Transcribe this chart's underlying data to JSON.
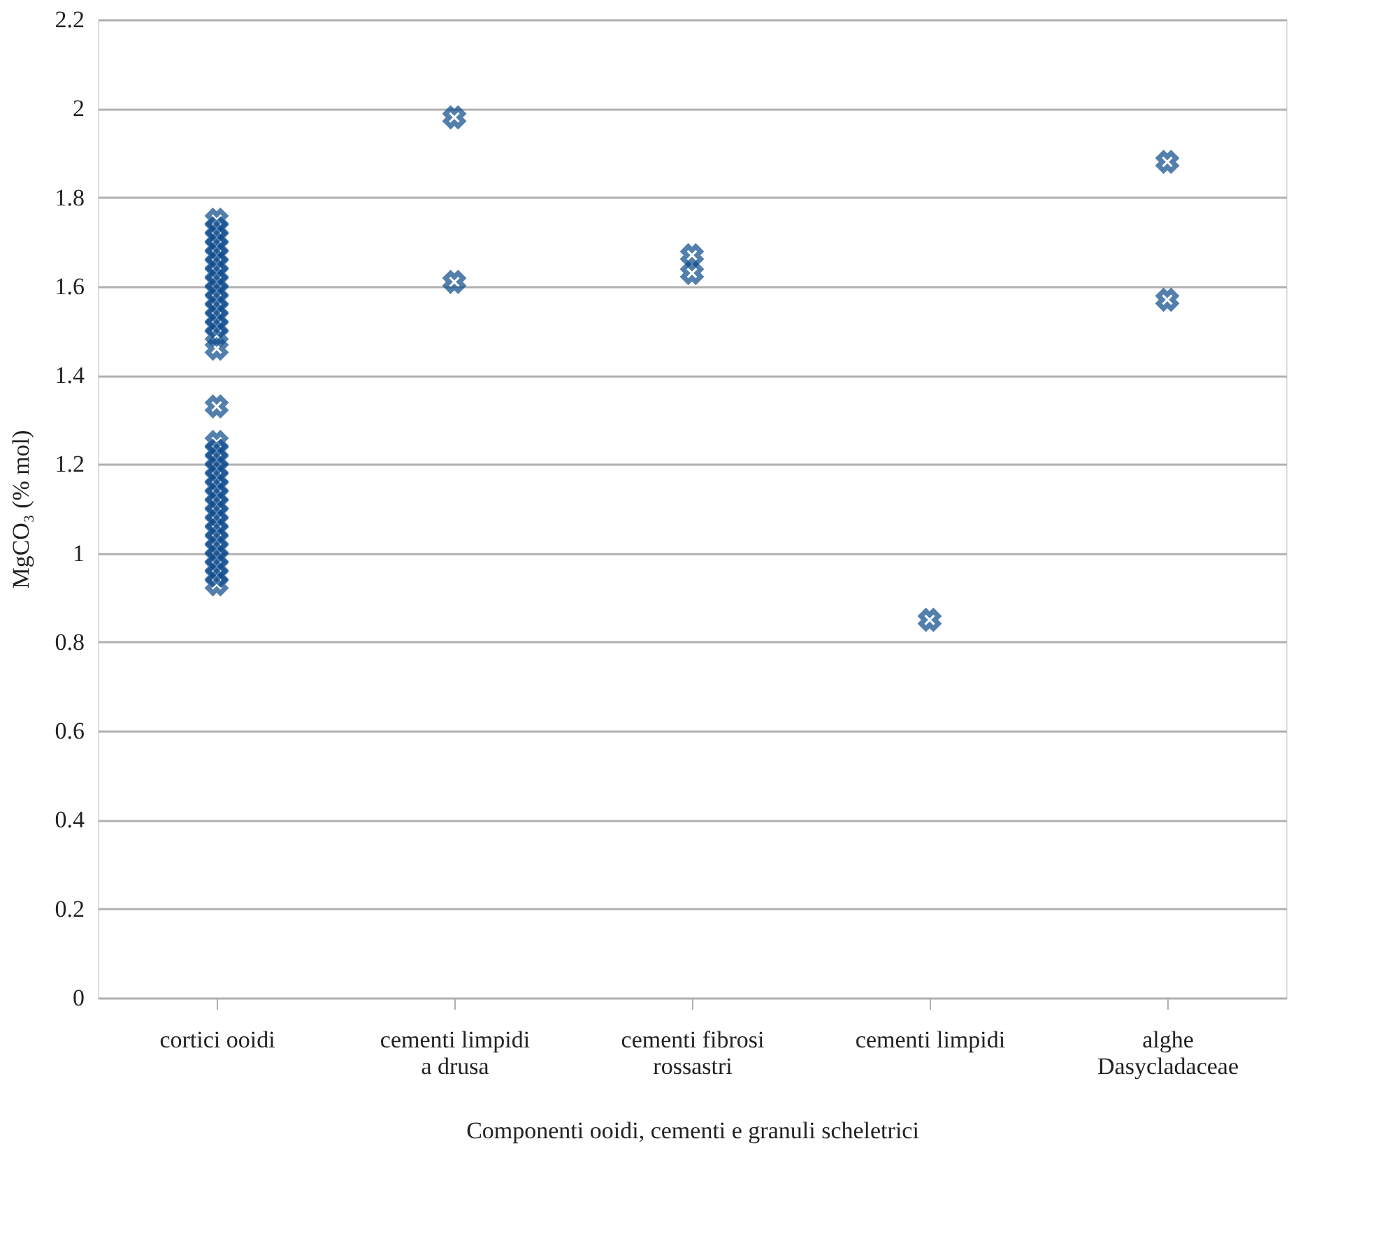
{
  "chart_data": {
    "type": "scatter",
    "xlabel": "Componenti ooidi, cementi e granuli scheletrici",
    "ylabel": "MgCO₃ (% mol)",
    "categories": [
      "cortici ooidi",
      "cementi limpidi\na drusa",
      "cementi fibrosi\nrossastri",
      "cementi limpidi",
      "alghe\nDasycladaceae"
    ],
    "series": [
      {
        "color": "#0b4a8b",
        "x": [
          "cortici ooidi",
          "cortici ooidi",
          "cortici ooidi",
          "cortici ooidi",
          "cortici ooidi",
          "cortici ooidi",
          "cortici ooidi",
          "cortici ooidi",
          "cortici ooidi",
          "cortici ooidi",
          "cortici ooidi",
          "cortici ooidi",
          "cortici ooidi",
          "cortici ooidi",
          "cortici ooidi",
          "cortici ooidi",
          "cortici ooidi",
          "cortici ooidi",
          "cortici ooidi",
          "cortici ooidi",
          "cortici ooidi",
          "cortici ooidi",
          "cortici ooidi",
          "cortici ooidi",
          "cortici ooidi",
          "cortici ooidi",
          "cortici ooidi",
          "cortici ooidi",
          "cortici ooidi",
          "cortici ooidi",
          "cortici ooidi",
          "cortici ooidi",
          "cortici ooidi",
          "cementi limpidi\na drusa",
          "cementi limpidi\na drusa",
          "cementi fibrosi\nrossastri",
          "cementi fibrosi\nrossastri",
          "cementi limpidi",
          "alghe\nDasycladaceae",
          "alghe\nDasycladaceae"
        ],
        "values": [
          1.75,
          1.73,
          1.71,
          1.69,
          1.67,
          1.65,
          1.63,
          1.61,
          1.59,
          1.57,
          1.55,
          1.53,
          1.51,
          1.49,
          1.46,
          1.33,
          1.25,
          1.23,
          1.21,
          1.19,
          1.17,
          1.15,
          1.13,
          1.11,
          1.09,
          1.07,
          1.05,
          1.03,
          1.01,
          0.99,
          0.97,
          0.95,
          0.93,
          1.98,
          1.61,
          1.67,
          1.63,
          0.85,
          1.88,
          1.57
        ]
      }
    ],
    "ylim": [
      0,
      2.2
    ],
    "yticks": [
      0,
      0.2,
      0.4,
      0.6,
      0.8,
      1,
      1.2,
      1.4,
      1.6,
      1.8,
      2,
      2.2
    ],
    "grid": "y",
    "marker": "cross",
    "legend": false
  }
}
